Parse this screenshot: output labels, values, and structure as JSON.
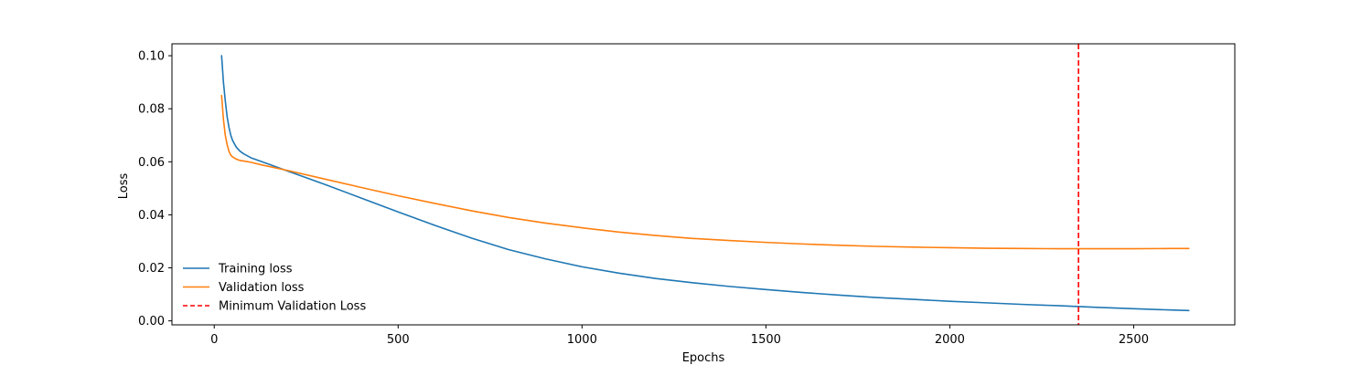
{
  "chart_data": {
    "type": "line",
    "title": "",
    "xlabel": "Epochs",
    "ylabel": "Loss",
    "xlim": [
      -115,
      2775
    ],
    "ylim": [
      -0.0015,
      0.1045
    ],
    "xticks": [
      0,
      500,
      1000,
      1500,
      2000,
      2500
    ],
    "xtick_labels": [
      "0",
      "500",
      "1000",
      "1500",
      "2000",
      "2500"
    ],
    "yticks": [
      0.0,
      0.02,
      0.04,
      0.06,
      0.08,
      0.1
    ],
    "ytick_labels": [
      "0.00",
      "0.02",
      "0.04",
      "0.06",
      "0.08",
      "0.10"
    ],
    "grid": false,
    "legend_position": "lower-left",
    "series": [
      {
        "name": "Training loss",
        "color": "#1f77b4",
        "style": "solid",
        "x": [
          20,
          25,
          30,
          35,
          40,
          45,
          50,
          60,
          70,
          80,
          100,
          130,
          200,
          300,
          400,
          500,
          600,
          700,
          800,
          900,
          1000,
          1100,
          1200,
          1300,
          1400,
          1500,
          1600,
          1700,
          1800,
          1900,
          2000,
          2100,
          2200,
          2300,
          2350,
          2400,
          2500,
          2600,
          2650
        ],
        "y": [
          0.1,
          0.09,
          0.083,
          0.077,
          0.073,
          0.07,
          0.068,
          0.0655,
          0.064,
          0.063,
          0.0615,
          0.06,
          0.0565,
          0.0515,
          0.0463,
          0.0411,
          0.036,
          0.0312,
          0.0269,
          0.0234,
          0.0204,
          0.018,
          0.016,
          0.0144,
          0.013,
          0.0118,
          0.0107,
          0.0097,
          0.0088,
          0.0081,
          0.0074,
          0.0068,
          0.0062,
          0.0057,
          0.0054,
          0.0051,
          0.0046,
          0.0041,
          0.0039
        ]
      },
      {
        "name": "Validation loss",
        "color": "#ff7f0e",
        "style": "solid",
        "x": [
          20,
          25,
          30,
          35,
          40,
          45,
          50,
          60,
          70,
          80,
          100,
          130,
          200,
          300,
          400,
          500,
          600,
          700,
          800,
          900,
          1000,
          1100,
          1200,
          1300,
          1400,
          1500,
          1600,
          1700,
          1800,
          1900,
          2000,
          2100,
          2200,
          2300,
          2350,
          2400,
          2500,
          2600,
          2650
        ],
        "y": [
          0.085,
          0.076,
          0.07,
          0.0665,
          0.064,
          0.0625,
          0.0618,
          0.061,
          0.0605,
          0.0603,
          0.0598,
          0.0588,
          0.0567,
          0.0535,
          0.0503,
          0.0472,
          0.0443,
          0.0415,
          0.039,
          0.0369,
          0.0351,
          0.0335,
          0.0322,
          0.0311,
          0.0303,
          0.0296,
          0.029,
          0.0285,
          0.0281,
          0.0278,
          0.0276,
          0.0274,
          0.0273,
          0.0272,
          0.0272,
          0.0272,
          0.0272,
          0.0273,
          0.0273
        ]
      }
    ],
    "vlines": [
      {
        "name": "Minimum Validation Loss",
        "x": 2350,
        "color": "#ff0000",
        "style": "dashed"
      }
    ]
  }
}
